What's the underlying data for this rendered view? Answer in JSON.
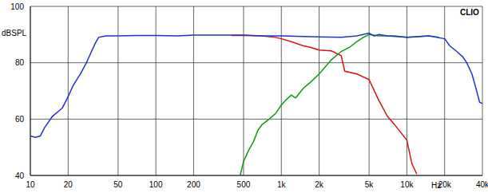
{
  "chart_data": {
    "type": "line",
    "title": "CLIO",
    "x_label": "Hz",
    "y_label": "dBSPL",
    "log": "x",
    "grid": true,
    "xlim": [
      10,
      40000
    ],
    "ylim": [
      40,
      100
    ],
    "xticks": [
      10,
      20,
      50,
      100,
      200,
      500,
      {
        "value": 1000,
        "label": "1k"
      },
      {
        "value": 2000,
        "label": "2k"
      },
      {
        "value": 5000,
        "label": "5k"
      },
      {
        "value": 10000,
        "label": "10k"
      },
      {
        "value": 20000,
        "label": "20k"
      },
      {
        "value": 40000,
        "label": "40k"
      }
    ],
    "yticks": [
      40,
      60,
      80,
      100
    ],
    "series": [
      {
        "color": "#dd1111",
        "x": [
          400,
          500,
          700,
          900,
          1000,
          1200,
          1500,
          1700,
          2000,
          2500,
          3000,
          3200,
          4000,
          5000,
          6000,
          7000,
          8000,
          10000,
          11000,
          12000
        ],
        "values": [
          89.7,
          89.7,
          89.5,
          89,
          88.5,
          87.5,
          86,
          85.5,
          84.5,
          84.2,
          82.5,
          77,
          76,
          74,
          66.5,
          61,
          58,
          52.5,
          44,
          40.5
        ]
      },
      {
        "color": "#119911",
        "x": [
          470,
          500,
          550,
          600,
          650,
          700,
          800,
          900,
          1000,
          1100,
          1200,
          1300,
          1500,
          1700,
          2000,
          2500,
          3000,
          3500,
          4000,
          4500,
          5000,
          6000,
          8000,
          10000,
          15000,
          18000
        ],
        "values": [
          40,
          45,
          49,
          52,
          56,
          58,
          60,
          62,
          65,
          67,
          68.5,
          67.5,
          71,
          73,
          76,
          81,
          84,
          85.5,
          87.5,
          89,
          90,
          89.5,
          89.5,
          89,
          89.5,
          89
        ]
      },
      {
        "color": "#2233cc",
        "x": [
          10,
          11,
          12,
          13,
          15,
          17,
          18,
          20,
          22,
          25,
          28,
          30,
          33,
          35,
          40,
          50,
          70,
          100,
          150,
          200,
          300,
          500,
          700,
          1000,
          1500,
          2000,
          3000,
          4000,
          5000,
          5500,
          6000,
          7000,
          10000,
          15000,
          20000,
          22000,
          25000,
          28000,
          30000,
          33000,
          35000,
          38000,
          40000
        ],
        "values": [
          54,
          53.5,
          54,
          57,
          61,
          63,
          64,
          68,
          72,
          76,
          80,
          83,
          87,
          89,
          89.5,
          89.5,
          89.7,
          89.7,
          89.5,
          89.8,
          89.8,
          89.8,
          89.5,
          89.5,
          89.3,
          89.2,
          89,
          89.5,
          90.5,
          89.5,
          90,
          89.5,
          89,
          89.5,
          88.5,
          86,
          84,
          82,
          80,
          76,
          72,
          66,
          65.5
        ]
      }
    ]
  }
}
